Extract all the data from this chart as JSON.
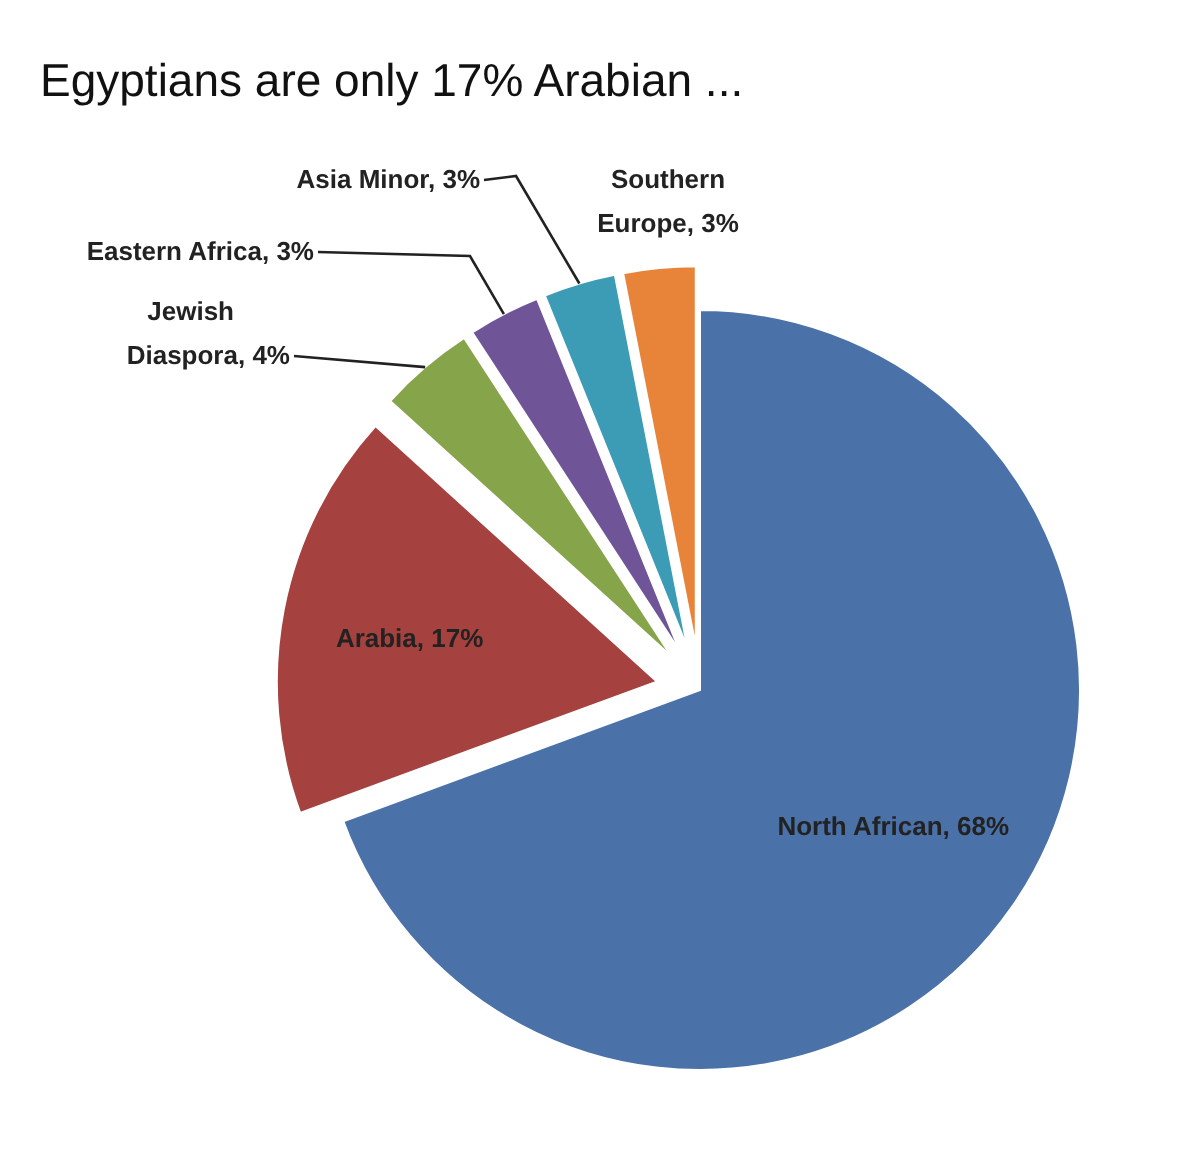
{
  "chart_data": {
    "type": "pie",
    "title": "Egyptians are only 17% Arabian ...",
    "categories": [
      "North African",
      "Arabia",
      "Jewish Diaspora",
      "Eastern Africa",
      "Asia Minor",
      "Southern Europe"
    ],
    "values": [
      68,
      17,
      4,
      3,
      3,
      3
    ],
    "value_labels": [
      "68%",
      "17%",
      "4%",
      "3%",
      "3%",
      "3%"
    ],
    "colors": [
      "#4a72a8",
      "#a5413e",
      "#86a44a",
      "#6f5597",
      "#3c9bb5",
      "#e8843a"
    ]
  }
}
